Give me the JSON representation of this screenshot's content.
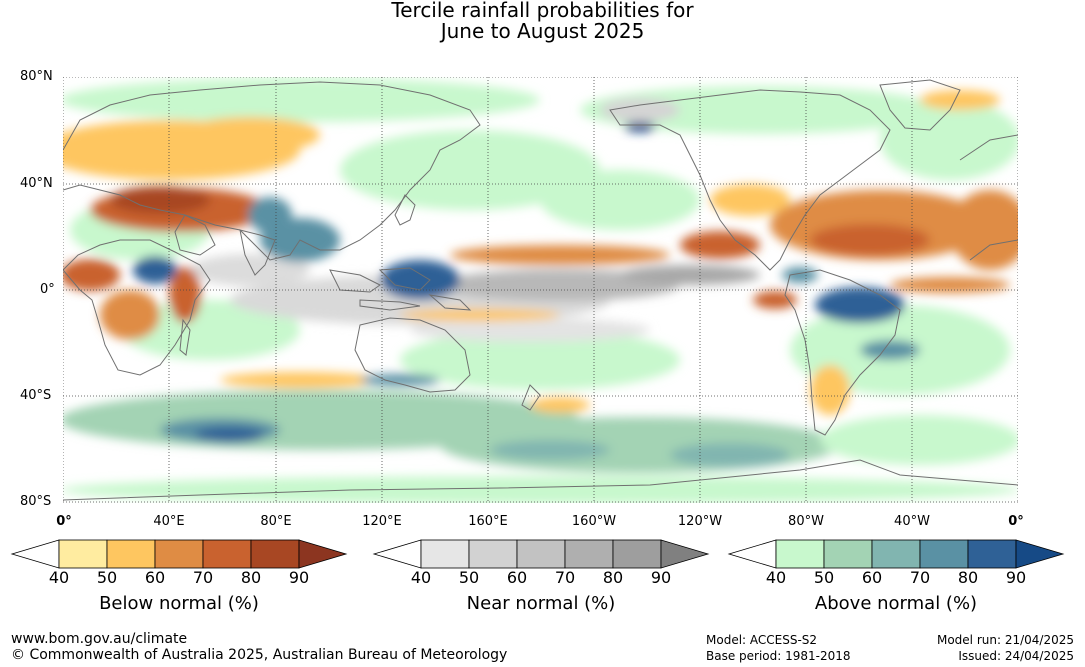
{
  "title": {
    "line1": "Tercile rainfall probabilities for",
    "line2": "June to August 2025"
  },
  "map": {
    "lat_labels": [
      "80°N",
      "40°N",
      "0°",
      "40°S",
      "80°S"
    ],
    "lon_labels": [
      "0°",
      "40°E",
      "80°E",
      "120°E",
      "160°E",
      "160°W",
      "120°W",
      "80°W",
      "40°W",
      "0°"
    ]
  },
  "legends": [
    {
      "title": "Below normal (%)",
      "ticks": [
        "40",
        "50",
        "60",
        "70",
        "80",
        "90"
      ],
      "colors": [
        "#ffeca0",
        "#fec660",
        "#df8c44",
        "#c9622f",
        "#a84723",
        "#8c3520"
      ]
    },
    {
      "title": "Near normal (%)",
      "ticks": [
        "40",
        "50",
        "60",
        "70",
        "80",
        "90"
      ],
      "colors": [
        "#e6e6e6",
        "#d2d2d2",
        "#c2c2c2",
        "#afafaf",
        "#9e9e9e",
        "#808080"
      ]
    },
    {
      "title": "Above normal (%)",
      "ticks": [
        "40",
        "50",
        "60",
        "70",
        "80",
        "90"
      ],
      "colors": [
        "#c8f8cd",
        "#a3d3b4",
        "#81b5b0",
        "#5a91a4",
        "#2f6196",
        "#164a86"
      ]
    }
  ],
  "footer": {
    "website": "www.bom.gov.au/climate",
    "copyright": "© Commonwealth of Australia 2025, Australian Bureau of Meteorology",
    "model": "Model: ACCESS-S2",
    "base_period": "Base period: 1981-2018",
    "model_run": "Model run: 21/04/2025",
    "issued": "Issued: 24/04/2025"
  }
}
